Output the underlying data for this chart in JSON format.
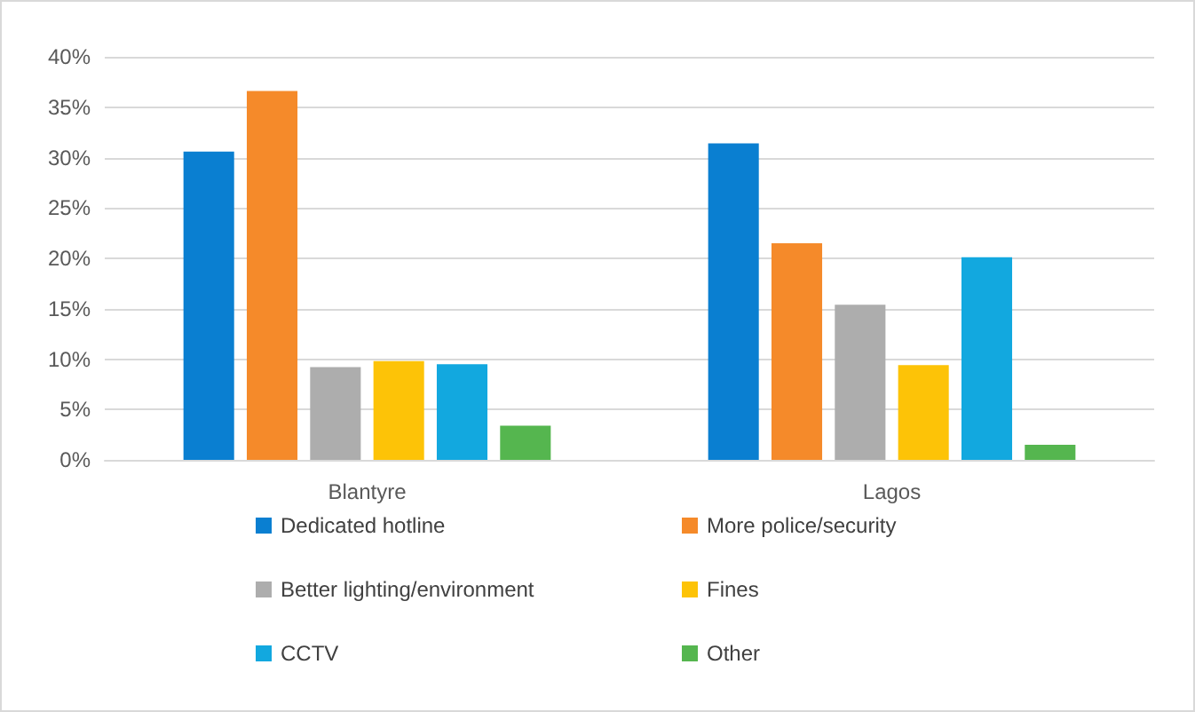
{
  "chart_data": {
    "type": "bar",
    "categories": [
      "Blantyre",
      "Lagos"
    ],
    "series": [
      {
        "name": "Dedicated hotline",
        "color": "#0a7fd1",
        "values": [
          30.6,
          31.4
        ]
      },
      {
        "name": "More police/security",
        "color": "#f58a2a",
        "values": [
          36.6,
          21.5
        ]
      },
      {
        "name": "Better lighting/environment",
        "color": "#adadad",
        "values": [
          9.2,
          15.4
        ]
      },
      {
        "name": "Fines",
        "color": "#fdc307",
        "values": [
          9.8,
          9.4
        ]
      },
      {
        "name": "CCTV",
        "color": "#12a8df",
        "values": [
          9.5,
          20.1
        ]
      },
      {
        "name": "Other",
        "color": "#55b64f",
        "values": [
          3.4,
          1.5
        ]
      }
    ],
    "ylim": [
      0,
      40
    ],
    "yticks": [
      {
        "value": 0,
        "label": "0%"
      },
      {
        "value": 5,
        "label": "5%"
      },
      {
        "value": 10,
        "label": "10%"
      },
      {
        "value": 15,
        "label": "15%"
      },
      {
        "value": 20,
        "label": "20%"
      },
      {
        "value": 25,
        "label": "25%"
      },
      {
        "value": 30,
        "label": "30%"
      },
      {
        "value": 35,
        "label": "35%"
      },
      {
        "value": 40,
        "label": "40%"
      }
    ],
    "grid": "y",
    "legend": "bottom"
  }
}
